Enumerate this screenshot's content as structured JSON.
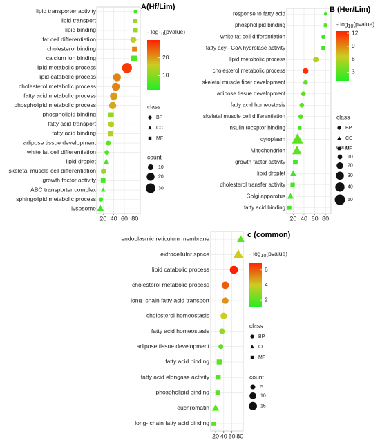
{
  "chart_data": [
    {
      "type": "scatter",
      "title": "A(Hf/Lim)",
      "categories": [
        "lipid transporter activity",
        "lipid transport",
        "lipid binding",
        "fat cell differentiation",
        "cholesterol binding",
        "calcium ion binding",
        "lipid metabolic process",
        "lipid catabolic process",
        "cholesterol metabolic process",
        "fatty acid metabolic process",
        "phospholipid metabolic process",
        "phospholipid binding",
        "fatty acid transport",
        "fatty acid binding",
        "adipose tissue development",
        "white fat cell differentiation",
        "lipid droplet",
        "skeletal muscle cell differentiation",
        "growth factor activity",
        "ABC  transporter complex",
        "sphingolipid metabolic process",
        "lysosome"
      ],
      "values": [
        81,
        81,
        81,
        77,
        79,
        78,
        65,
        46,
        44,
        40,
        38,
        35,
        35,
        34,
        30,
        27,
        26,
        21,
        20,
        20,
        16,
        15
      ],
      "class": [
        "MF",
        "MF",
        "MF",
        "BP",
        "MF",
        "MF",
        "BP",
        "BP",
        "BP",
        "BP",
        "BP",
        "MF",
        "BP",
        "MF",
        "BP",
        "BP",
        "CC",
        "BP",
        "MF",
        "CC",
        "BP",
        "CC"
      ],
      "counts": [
        5,
        8,
        10,
        12,
        10,
        15,
        32,
        20,
        20,
        18,
        17,
        12,
        12,
        12,
        8,
        7,
        10,
        10,
        10,
        6,
        6,
        14
      ],
      "pvalues": [
        5,
        12,
        12,
        15,
        22,
        6,
        28,
        22,
        22,
        20,
        19,
        11,
        14,
        14,
        7,
        6,
        5,
        12,
        5,
        4,
        4,
        4
      ],
      "xlim": [
        8,
        90
      ],
      "xticks": [
        20,
        40,
        60,
        80
      ],
      "colorbar_label": [
        "- log",
        "10",
        "(pvalue)"
      ],
      "colorlim": [
        2,
        30
      ],
      "colorticks": [
        10,
        20
      ],
      "colorscale": [
        "#22ee22",
        "#cccc22",
        "#ff2200"
      ],
      "class_title": "class",
      "class_names": [
        "BP",
        "CC",
        "MF"
      ],
      "count_title": "count",
      "count_ticks": [
        10,
        20,
        30
      ],
      "grid": true
    },
    {
      "type": "scatter",
      "title": "B (Her/Lim)",
      "categories": [
        "response to fatty acid",
        "phospholipid binding",
        "white fat cell differentiation",
        "fatty acyl- CoA hydrolase activity",
        "lipid metabolic process",
        "cholesterol metabolic process",
        "skeletal muscle fiber development",
        "adipose tissue development",
        "fatty acid homeostasis",
        "skeletal muscle cell differentiation",
        "insulin receptor binding",
        "cytoplasm",
        "Mitochondrion",
        "growth factor activity",
        "lipid droplet",
        "cholesterol transfer activity",
        "Golgi apparatus",
        "fatty acid binding"
      ],
      "values": [
        80,
        80,
        76,
        76,
        62,
        43,
        43,
        39,
        36,
        34,
        32,
        28,
        27,
        24,
        20,
        19,
        15,
        13
      ],
      "class": [
        "BP",
        "MF",
        "BP",
        "MF",
        "BP",
        "BP",
        "BP",
        "BP",
        "BP",
        "BP",
        "MF",
        "CC",
        "CC",
        "MF",
        "CC",
        "MF",
        "CC",
        "MF"
      ],
      "counts": [
        5,
        8,
        8,
        10,
        15,
        15,
        10,
        10,
        10,
        10,
        8,
        50,
        35,
        14,
        14,
        12,
        15,
        10
      ],
      "pvalues": [
        2,
        3,
        2,
        2,
        6,
        12,
        3,
        3,
        3,
        3,
        2,
        3,
        3,
        2,
        2,
        2,
        2,
        2
      ],
      "xlim": [
        8,
        90
      ],
      "xticks": [
        20,
        40,
        60,
        80
      ],
      "colorbar_label": [
        "- log",
        "10",
        "(pvalue)"
      ],
      "colorlim": [
        1,
        12.5
      ],
      "colorticks": [
        3,
        6,
        9,
        12
      ],
      "colorscale": [
        "#22ee22",
        "#cccc22",
        "#ff2200"
      ],
      "class_title": "class",
      "class_names": [
        "BP",
        "CC",
        "MF"
      ],
      "count_title": "count",
      "count_ticks": [
        10,
        20,
        30,
        40,
        50
      ],
      "grid": true
    },
    {
      "type": "scatter",
      "title": "c (common)",
      "categories": [
        "endoplasmic reticulum membrane",
        "extracellular space",
        "lipid catabolic process",
        "cholesterol metabolic process",
        "long- chain fatty acid transport",
        "cholesterol homeostasis",
        "fatty acid homeostasis",
        "adipose tissue development",
        "fatty acid binding",
        "fatty acid elongase activity",
        "phospholipid binding",
        "euchromatin",
        "long- chain fatty acid binding"
      ],
      "values": [
        82,
        76,
        65,
        44,
        44,
        40,
        36,
        33,
        29,
        27,
        25,
        20,
        15
      ],
      "class": [
        "CC",
        "CC",
        "BP",
        "BP",
        "BP",
        "BP",
        "BP",
        "BP",
        "MF",
        "MF",
        "MF",
        "CC",
        "MF"
      ],
      "counts": [
        10,
        18,
        14,
        12,
        9,
        9,
        7,
        5,
        8,
        6,
        6,
        10,
        5
      ],
      "pvalues": [
        2,
        4,
        7,
        6,
        5,
        4,
        3,
        2,
        2,
        2,
        2,
        2,
        2
      ],
      "xlim": [
        8,
        88
      ],
      "xticks": [
        20,
        40,
        60,
        80
      ],
      "colorbar_label": [
        "- log",
        "10",
        "(pvalue)"
      ],
      "colorlim": [
        1,
        7
      ],
      "colorticks": [
        2,
        4,
        6
      ],
      "colorscale": [
        "#22ee22",
        "#cccc22",
        "#ff2200"
      ],
      "class_title": "class",
      "class_names": [
        "BP",
        "CC",
        "MF"
      ],
      "count_title": "count",
      "count_ticks": [
        5,
        10,
        15
      ],
      "grid": true
    }
  ]
}
